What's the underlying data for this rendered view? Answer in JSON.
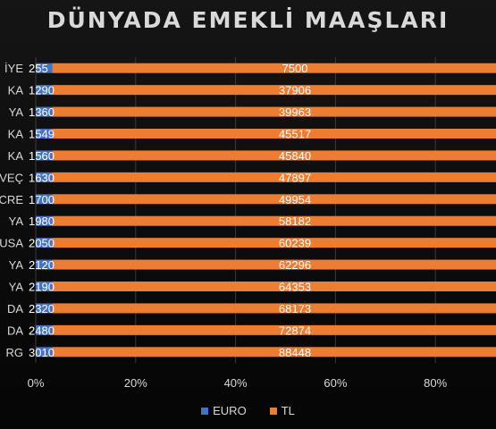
{
  "chart_data": {
    "type": "bar",
    "orientation": "horizontal",
    "stacked": "100%",
    "title": "DÜNYADA EMEKLİ MAAŞLARI",
    "categories": [
      "İYE",
      "KA",
      "YA",
      "KA",
      "KA",
      "VEÇ",
      "CRE",
      "YA",
      "USA",
      "YA",
      "YA",
      "DA",
      "DA",
      "RG"
    ],
    "series": [
      {
        "name": "EURO",
        "color": "#4472c4",
        "values": [
          255,
          1290,
          1360,
          1549,
          1560,
          1630,
          1700,
          1980,
          2050,
          2120,
          2190,
          2320,
          2480,
          3010
        ]
      },
      {
        "name": "TL",
        "color": "#ed7d31",
        "values": [
          7500,
          37906,
          39963,
          45517,
          45840,
          47897,
          49954,
          58182,
          60239,
          62296,
          64353,
          68173,
          72874,
          88448
        ]
      }
    ],
    "x_ticks": [
      "0%",
      "20%",
      "40%",
      "60%",
      "80%"
    ],
    "xlim": [
      0,
      1
    ],
    "grid": true,
    "legend": "bottom"
  }
}
